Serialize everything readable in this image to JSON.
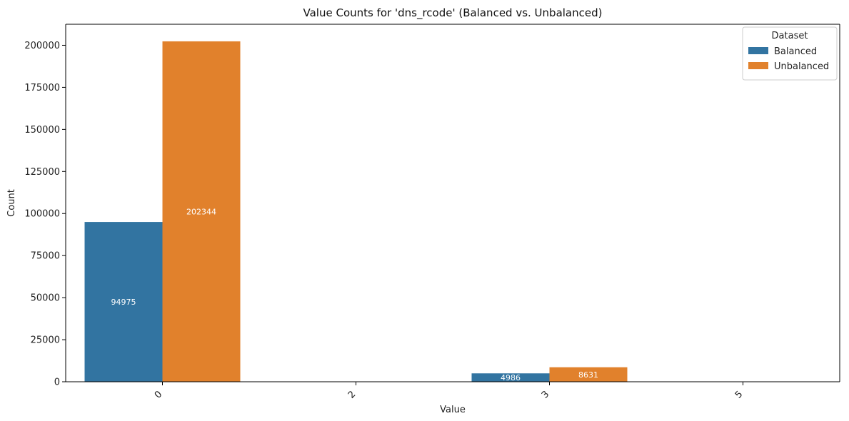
{
  "chart_data": {
    "type": "bar",
    "title": "Value Counts for 'dns_rcode' (Balanced vs. Unbalanced)",
    "xlabel": "Value",
    "ylabel": "Count",
    "categories": [
      "0",
      "2",
      "3",
      "5"
    ],
    "series": [
      {
        "name": "Balanced",
        "color": "#3274a1",
        "values": [
          94975,
          0,
          4986,
          0
        ]
      },
      {
        "name": "Unbalanced",
        "color": "#e1812c",
        "values": [
          202344,
          0,
          8631,
          0
        ]
      }
    ],
    "data_labels": [
      [
        "94975",
        "202344"
      ],
      [
        "",
        ""
      ],
      [
        "4986",
        "8631"
      ],
      [
        "",
        ""
      ]
    ],
    "ylim": [
      0,
      212500
    ],
    "yticks": [
      0,
      25000,
      50000,
      75000,
      100000,
      125000,
      150000,
      175000,
      200000
    ],
    "grid": false,
    "legend": {
      "title": "Dataset",
      "placement": "top-right"
    }
  }
}
